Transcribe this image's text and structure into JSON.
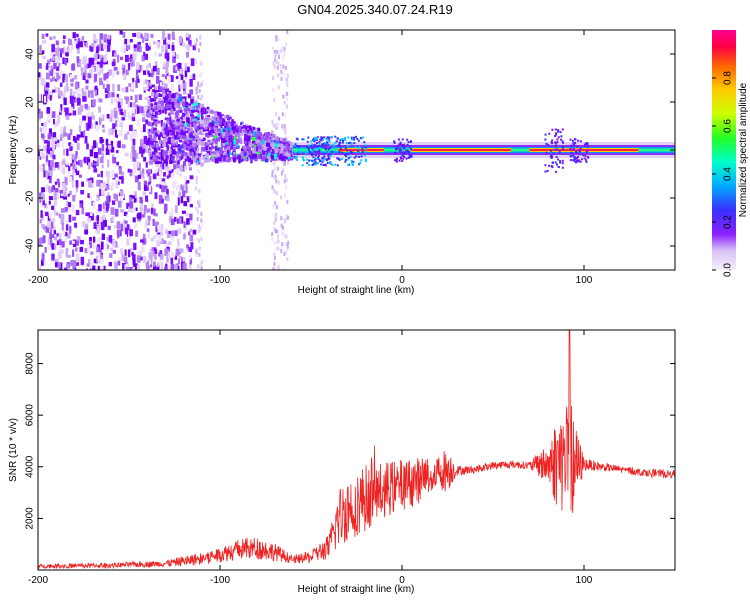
{
  "title": "GN04.2025.340.07.24.R19",
  "chart_data": [
    {
      "type": "heatmap",
      "xlabel": "Height of straight line (km)",
      "ylabel": "Frequency (Hz)",
      "xlim": [
        -200,
        150
      ],
      "ylim": [
        -50,
        50
      ],
      "xticks": [
        -200,
        -100,
        0,
        100
      ],
      "yticks": [
        -40,
        -20,
        0,
        20,
        40
      ],
      "colorbar": {
        "label": "Normalized spectral amplitude",
        "range": [
          0,
          1
        ],
        "ticks": [
          0.0,
          0.2,
          0.4,
          0.6,
          0.8
        ],
        "colors": [
          "#e6d8f5",
          "#b070f0",
          "#7a00ff",
          "#3030ff",
          "#00aaff",
          "#00ffcc",
          "#22ff22",
          "#ccff00",
          "#ffcc00",
          "#ff6600",
          "#ff0044",
          "#ff0090"
        ]
      },
      "features": {
        "noise_region_km": [
          -200,
          -115
        ],
        "spray_region_km": [
          -140,
          -60
        ],
        "spray_freq_peak_hz": 12,
        "line_start_km": -60,
        "line_end_km": 150,
        "line_freq_hz": 0,
        "bright_line_segments_km": [
          [
            -35,
            -10
          ],
          [
            5,
            60
          ],
          [
            70,
            130
          ]
        ],
        "bumps": [
          {
            "x": -45,
            "amp": 6
          },
          {
            "x": 0,
            "amp": 5
          },
          {
            "x": 83,
            "amp": 9
          },
          {
            "x": 97,
            "amp": 5
          }
        ],
        "vertical_streaks_km": [
          -112,
          -70,
          -65
        ]
      }
    },
    {
      "type": "line",
      "xlabel": "Height of straight line (km)",
      "ylabel": "SNR (10 * v/v)",
      "xlim": [
        -200,
        150
      ],
      "ylim": [
        0,
        9300
      ],
      "xticks": [
        -200,
        -100,
        0,
        100
      ],
      "yticks": [
        2000,
        4000,
        6000,
        8000
      ],
      "color": "#ee2222",
      "series": [
        {
          "name": "SNR",
          "x": [
            -200,
            -160,
            -130,
            -120,
            -110,
            -100,
            -90,
            -80,
            -70,
            -60,
            -50,
            -40,
            -35,
            -30,
            -20,
            -10,
            0,
            10,
            20,
            25,
            30,
            40,
            50,
            60,
            70,
            80,
            85,
            90,
            95,
            100,
            105,
            110,
            120,
            130,
            140,
            150
          ],
          "y": [
            150,
            180,
            250,
            350,
            450,
            600,
            800,
            850,
            700,
            400,
            500,
            900,
            2000,
            2400,
            2800,
            3100,
            3300,
            3500,
            3800,
            3900,
            3850,
            3900,
            4050,
            4100,
            4050,
            4100,
            4200,
            4300,
            4000,
            4100,
            4050,
            4000,
            3900,
            3800,
            3750,
            3700
          ],
          "noise_amp": [
            80,
            100,
            120,
            200,
            250,
            300,
            400,
            450,
            350,
            150,
            250,
            500,
            1200,
            1300,
            1300,
            1100,
            1000,
            900,
            700,
            900,
            200,
            150,
            150,
            150,
            150,
            800,
            1800,
            2300,
            1800,
            250,
            200,
            150,
            150,
            150,
            150,
            150
          ]
        }
      ],
      "peak": {
        "x": 92,
        "y": 9300
      }
    }
  ]
}
